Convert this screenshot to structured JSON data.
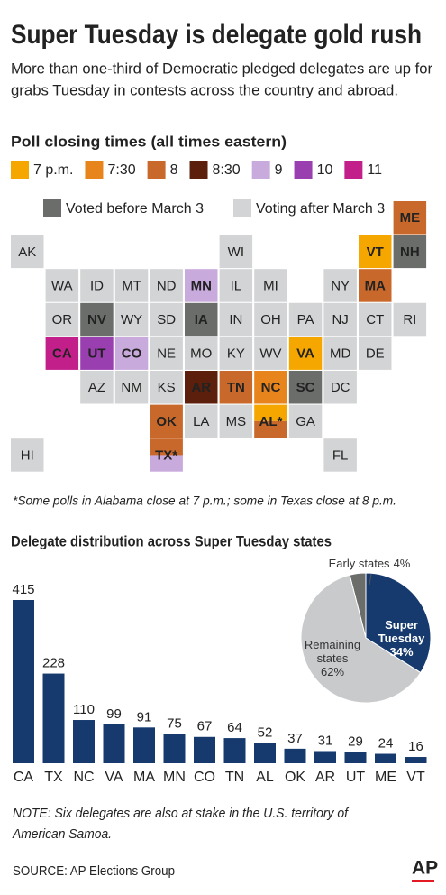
{
  "header": {
    "title": "Super Tuesday is delegate gold rush",
    "subtitle": [
      "More than one-third of Democratic pledged delegates are up for",
      "grabs Tuesday in contests across the country and abroad."
    ]
  },
  "map": {
    "title": "Poll closing times (all times eastern)",
    "legend": [
      {
        "label": "7 p.m.",
        "color": "#f5a700"
      },
      {
        "label": "7:30",
        "color": "#e8841c"
      },
      {
        "label": "8",
        "color": "#c8692b"
      },
      {
        "label": "8:30",
        "color": "#5b1f0b"
      },
      {
        "label": "9",
        "color": "#c9aadc"
      },
      {
        "label": "10",
        "color": "#9a3fb0"
      },
      {
        "label": "11",
        "color": "#c21f8b"
      }
    ],
    "status_legend": [
      {
        "label": "Voted before March 3",
        "color": "#6b6d6b"
      },
      {
        "label": "Voting after March 3",
        "color": "#d3d4d5"
      }
    ],
    "rows": [
      [
        null,
        null,
        null,
        null,
        null,
        null,
        null,
        null,
        null,
        null,
        null,
        {
          "label": "ME",
          "color": "#c8692b"
        }
      ],
      [
        {
          "label": "AK",
          "color": "#d3d4d5"
        },
        null,
        null,
        null,
        null,
        null,
        {
          "label": "WI",
          "color": "#d3d4d5"
        },
        null,
        null,
        null,
        {
          "label": "VT",
          "color": "#f5a700"
        },
        {
          "label": "NH",
          "color": "#6b6d6b"
        }
      ],
      [
        null,
        {
          "label": "WA",
          "color": "#d3d4d5"
        },
        {
          "label": "ID",
          "color": "#d3d4d5"
        },
        {
          "label": "MT",
          "color": "#d3d4d5"
        },
        {
          "label": "ND",
          "color": "#d3d4d5"
        },
        {
          "label": "MN",
          "color": "#c9aadc"
        },
        {
          "label": "IL",
          "color": "#d3d4d5"
        },
        {
          "label": "MI",
          "color": "#d3d4d5"
        },
        null,
        {
          "label": "NY",
          "color": "#d3d4d5"
        },
        {
          "label": "MA",
          "color": "#c8692b"
        },
        null
      ],
      [
        null,
        {
          "label": "OR",
          "color": "#d3d4d5"
        },
        {
          "label": "NV",
          "color": "#6b6d6b"
        },
        {
          "label": "WY",
          "color": "#d3d4d5"
        },
        {
          "label": "SD",
          "color": "#d3d4d5"
        },
        {
          "label": "IA",
          "color": "#6b6d6b"
        },
        {
          "label": "IN",
          "color": "#d3d4d5"
        },
        {
          "label": "OH",
          "color": "#d3d4d5"
        },
        {
          "label": "PA",
          "color": "#d3d4d5"
        },
        {
          "label": "NJ",
          "color": "#d3d4d5"
        },
        {
          "label": "CT",
          "color": "#d3d4d5"
        },
        {
          "label": "RI",
          "color": "#d3d4d5"
        }
      ],
      [
        null,
        {
          "label": "CA",
          "color": "#c21f8b"
        },
        {
          "label": "UT",
          "color": "#9a3fb0"
        },
        {
          "label": "CO",
          "color": "#c9aadc"
        },
        {
          "label": "NE",
          "color": "#d3d4d5"
        },
        {
          "label": "MO",
          "color": "#d3d4d5"
        },
        {
          "label": "KY",
          "color": "#d3d4d5"
        },
        {
          "label": "WV",
          "color": "#d3d4d5"
        },
        {
          "label": "VA",
          "color": "#f5a700"
        },
        {
          "label": "MD",
          "color": "#d3d4d5"
        },
        {
          "label": "DE",
          "color": "#d3d4d5"
        },
        null
      ],
      [
        null,
        null,
        {
          "label": "AZ",
          "color": "#d3d4d5"
        },
        {
          "label": "NM",
          "color": "#d3d4d5"
        },
        {
          "label": "KS",
          "color": "#d3d4d5"
        },
        {
          "label": "AR",
          "color": "#5b1f0b"
        },
        {
          "label": "TN",
          "color": "#c8692b"
        },
        {
          "label": "NC",
          "color": "#e8841c"
        },
        {
          "label": "SC",
          "color": "#6b6d6b"
        },
        {
          "label": "DC",
          "color": "#d3d4d5"
        },
        null,
        null
      ],
      [
        null,
        null,
        null,
        null,
        {
          "label": "OK",
          "color": "#c8692b"
        },
        {
          "label": "LA",
          "color": "#d3d4d5"
        },
        {
          "label": "MS",
          "color": "#d3d4d5"
        },
        {
          "label": "AL*",
          "colors": [
            "#f5a700",
            "#c8692b"
          ]
        },
        {
          "label": "GA",
          "color": "#d3d4d5"
        },
        null,
        null,
        null
      ],
      [
        {
          "label": "HI",
          "color": "#d3d4d5"
        },
        null,
        null,
        null,
        {
          "label": "TX*",
          "colors": [
            "#c8692b",
            "#c9aadc"
          ]
        },
        null,
        null,
        null,
        null,
        {
          "label": "FL",
          "color": "#d3d4d5"
        },
        null,
        null
      ]
    ],
    "footnote": "*Some polls in Alabama close at 7 p.m.; some in Texas close at 8 p.m."
  },
  "chart_data": [
    {
      "type": "bar",
      "title": "Delegate distribution across Super Tuesday states",
      "color": "#163a6e",
      "categories": [
        "CA",
        "TX",
        "NC",
        "VA",
        "MA",
        "MN",
        "CO",
        "TN",
        "AL",
        "OK",
        "AR",
        "UT",
        "ME",
        "VT"
      ],
      "values": [
        415,
        228,
        110,
        99,
        91,
        75,
        67,
        64,
        52,
        37,
        31,
        29,
        24,
        16
      ]
    },
    {
      "type": "pie",
      "categories": [
        "Early states",
        "Super Tuesday",
        "Remaining states"
      ],
      "values": [
        4,
        34,
        62
      ],
      "value_labels": [
        "4%",
        "34%",
        "62%"
      ],
      "colors": [
        "#6b6d6b",
        "#163a6e",
        "#c8cacc"
      ]
    }
  ],
  "note": [
    "NOTE: Six delegates are also at stake in the U.S. territory of",
    "American Samoa."
  ],
  "source": "SOURCE: AP Elections Group",
  "logo": "AP"
}
